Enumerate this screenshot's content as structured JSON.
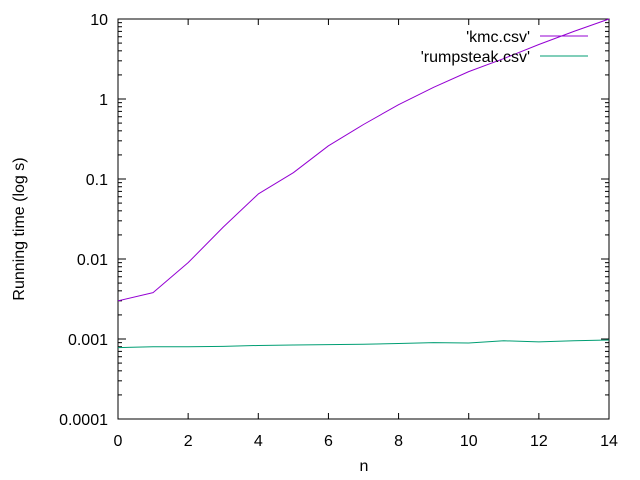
{
  "chart_data": {
    "type": "line",
    "xlabel": "n",
    "ylabel": "Running time (log s)",
    "xlim": [
      0,
      14
    ],
    "ylim": [
      0.0001,
      10
    ],
    "yscale": "log",
    "grid": false,
    "legend_position": "top-right",
    "x_ticks": [
      {
        "value": 0,
        "label": "0"
      },
      {
        "value": 2,
        "label": "2"
      },
      {
        "value": 4,
        "label": "4"
      },
      {
        "value": 6,
        "label": "6"
      },
      {
        "value": 8,
        "label": "8"
      },
      {
        "value": 10,
        "label": "10"
      },
      {
        "value": 12,
        "label": "12"
      },
      {
        "value": 14,
        "label": "14"
      }
    ],
    "y_ticks": [
      {
        "value": 0.0001,
        "label": "0.0001"
      },
      {
        "value": 0.001,
        "label": "0.001"
      },
      {
        "value": 0.01,
        "label": "0.01"
      },
      {
        "value": 0.1,
        "label": "0.1"
      },
      {
        "value": 1,
        "label": "1"
      },
      {
        "value": 10,
        "label": "10"
      }
    ],
    "x": [
      0,
      1,
      2,
      3,
      4,
      5,
      6,
      7,
      8,
      9,
      10,
      11,
      12,
      13,
      14
    ],
    "series": [
      {
        "name": "'kmc.csv'",
        "color": "#9400d3",
        "values": [
          0.003,
          0.0038,
          0.009,
          0.025,
          0.065,
          0.12,
          0.26,
          0.48,
          0.85,
          1.4,
          2.2,
          3.2,
          4.8,
          7.0,
          10.0
        ]
      },
      {
        "name": "'rumpsteak.csv'",
        "color": "#009e73",
        "values": [
          0.00078,
          0.0008,
          0.0008,
          0.00081,
          0.00083,
          0.00084,
          0.00085,
          0.00086,
          0.00088,
          0.0009,
          0.00089,
          0.00095,
          0.00092,
          0.00095,
          0.00097
        ]
      }
    ]
  }
}
